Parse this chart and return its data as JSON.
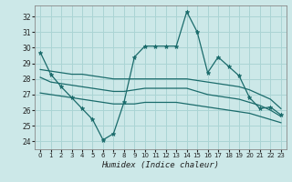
{
  "title": "",
  "xlabel": "Humidex (Indice chaleur)",
  "bg_color": "#cce8e8",
  "grid_color": "#aad4d4",
  "line_color": "#1a6b6b",
  "ylim": [
    23.5,
    32.7
  ],
  "xlim": [
    -0.5,
    23.5
  ],
  "yticks": [
    24,
    25,
    26,
    27,
    28,
    29,
    30,
    31,
    32
  ],
  "xticks": [
    0,
    1,
    2,
    3,
    4,
    5,
    6,
    7,
    8,
    9,
    10,
    11,
    12,
    13,
    14,
    15,
    16,
    17,
    18,
    19,
    20,
    21,
    22,
    23
  ],
  "line1_x": [
    0,
    1,
    2,
    3,
    4,
    5,
    6,
    7,
    8,
    9,
    10,
    11,
    12,
    13,
    14,
    15,
    16,
    17,
    18,
    19,
    20,
    21,
    22,
    23
  ],
  "line1_y": [
    29.7,
    28.3,
    27.5,
    26.8,
    26.1,
    25.4,
    24.1,
    24.5,
    26.5,
    29.4,
    30.1,
    30.1,
    30.1,
    30.1,
    32.3,
    31.0,
    28.4,
    29.4,
    28.8,
    28.2,
    26.8,
    26.1,
    26.2,
    25.7
  ],
  "line2_x": [
    0,
    1,
    2,
    3,
    4,
    5,
    6,
    7,
    8,
    9,
    10,
    11,
    12,
    13,
    14,
    15,
    16,
    17,
    18,
    19,
    20,
    21,
    22,
    23
  ],
  "line2_y": [
    28.6,
    28.5,
    28.4,
    28.3,
    28.3,
    28.2,
    28.1,
    28.0,
    28.0,
    28.0,
    28.0,
    28.0,
    28.0,
    28.0,
    28.0,
    27.9,
    27.8,
    27.7,
    27.6,
    27.5,
    27.3,
    27.0,
    26.7,
    26.1
  ],
  "line3_x": [
    0,
    1,
    2,
    3,
    4,
    5,
    6,
    7,
    8,
    9,
    10,
    11,
    12,
    13,
    14,
    15,
    16,
    17,
    18,
    19,
    20,
    21,
    22,
    23
  ],
  "line3_y": [
    28.1,
    27.8,
    27.7,
    27.6,
    27.5,
    27.4,
    27.3,
    27.2,
    27.2,
    27.3,
    27.4,
    27.4,
    27.4,
    27.4,
    27.4,
    27.2,
    27.0,
    26.9,
    26.8,
    26.7,
    26.5,
    26.3,
    26.0,
    25.6
  ],
  "line4_x": [
    0,
    1,
    2,
    3,
    4,
    5,
    6,
    7,
    8,
    9,
    10,
    11,
    12,
    13,
    14,
    15,
    16,
    17,
    18,
    19,
    20,
    21,
    22,
    23
  ],
  "line4_y": [
    27.1,
    27.0,
    26.9,
    26.8,
    26.7,
    26.6,
    26.5,
    26.4,
    26.4,
    26.4,
    26.5,
    26.5,
    26.5,
    26.5,
    26.4,
    26.3,
    26.2,
    26.1,
    26.0,
    25.9,
    25.8,
    25.6,
    25.4,
    25.2
  ]
}
